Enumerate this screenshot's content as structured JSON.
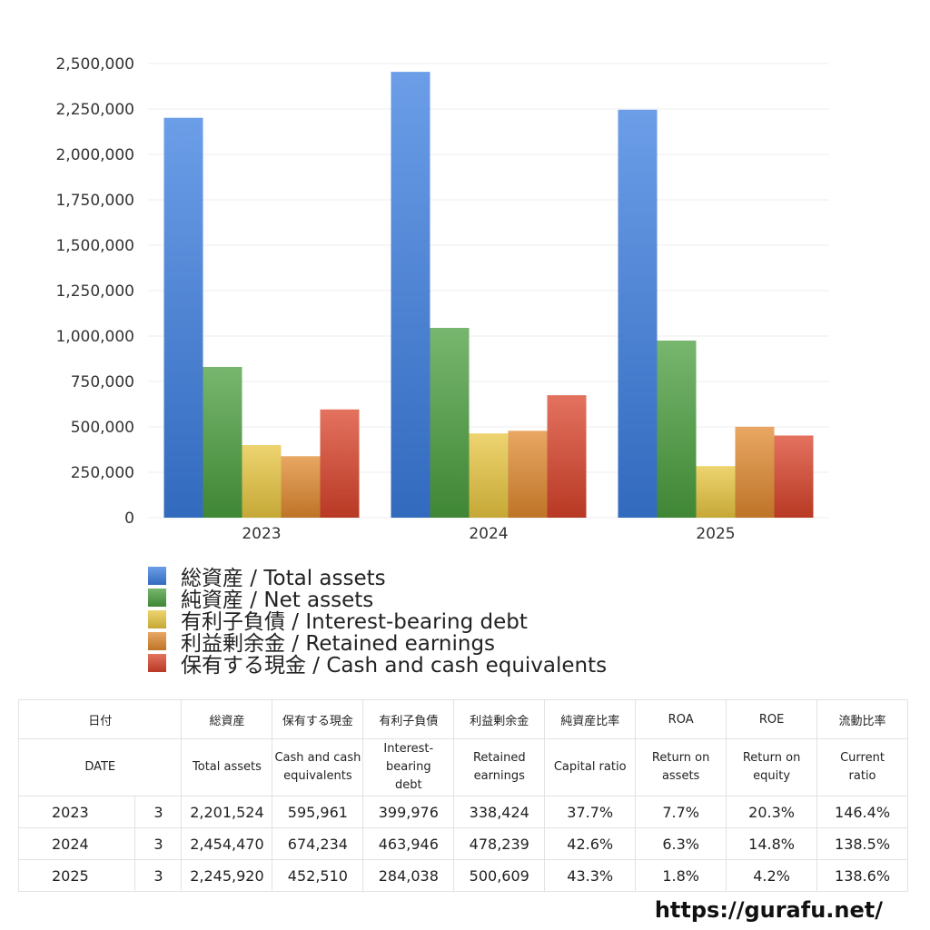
{
  "chart_data": {
    "type": "bar",
    "categories": [
      "2023",
      "2024",
      "2025"
    ],
    "yticks": [
      "0",
      "250,000",
      "500,000",
      "750,000",
      "1,000,000",
      "1,250,000",
      "1,500,000",
      "1,750,000",
      "2,000,000",
      "2,250,000",
      "2,500,000"
    ],
    "ylim": [
      0,
      2500000
    ],
    "grid": true,
    "legend_position": "bottom",
    "series": [
      {
        "name": "総資産 / Total assets",
        "values": [
          2201524,
          2454470,
          2245920
        ],
        "color": "#3b7de0"
      },
      {
        "name": "純資産 / Net assets",
        "values": [
          830000,
          1045000,
          975000
        ],
        "color": "#4a9e3e"
      },
      {
        "name": "有利子負債 / Interest-bearing debt",
        "values": [
          399976,
          463946,
          284038
        ],
        "color": "#e8c640"
      },
      {
        "name": "利益剰余金 / Retained earnings",
        "values": [
          338424,
          478239,
          500609
        ],
        "color": "#e0892f"
      },
      {
        "name": "保有する現金 /  Cash and cash equivalents",
        "values": [
          595961,
          674234,
          452510
        ],
        "color": "#d9432a"
      }
    ]
  },
  "table": {
    "headers_jp": [
      "日付",
      "",
      "総資産",
      "保有する現金",
      "有利子負債",
      "利益剰余金",
      "純資産比率",
      "ROA",
      "ROE",
      "流動比率"
    ],
    "headers_en": [
      [
        "DATE"
      ],
      [
        ""
      ],
      [
        "Total assets"
      ],
      [
        "Cash and cash",
        "equivalents"
      ],
      [
        "Interest-",
        "bearing",
        "debt"
      ],
      [
        "Retained",
        "earnings"
      ],
      [
        "Capital ratio"
      ],
      [
        "Return on",
        "assets"
      ],
      [
        "Return on",
        "equity"
      ],
      [
        "Current",
        "ratio"
      ]
    ],
    "rows": [
      [
        "2023",
        "3",
        "2,201,524",
        "595,961",
        "399,976",
        "338,424",
        "37.7%",
        "7.7%",
        "20.3%",
        "146.4%"
      ],
      [
        "2024",
        "3",
        "2,454,470",
        "674,234",
        "463,946",
        "478,239",
        "42.6%",
        "6.3%",
        "14.8%",
        "138.5%"
      ],
      [
        "2025",
        "3",
        "2,245,920",
        "452,510",
        "284,038",
        "500,609",
        "43.3%",
        "1.8%",
        "4.2%",
        "138.6%"
      ]
    ]
  },
  "footer": {
    "url": "https://gurafu.net/"
  }
}
